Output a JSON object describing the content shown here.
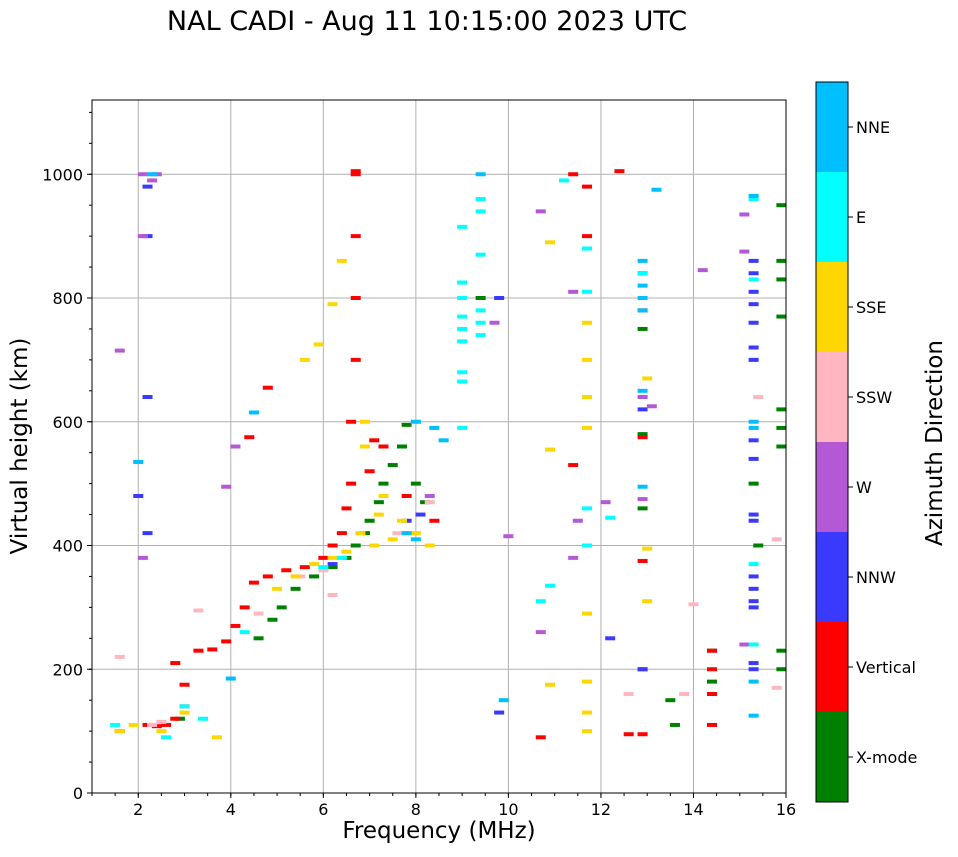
{
  "chart_data": {
    "type": "scatter",
    "title": "NAL CADI - Aug 11 10:15:00 2023 UTC",
    "xlabel": "Frequency (MHz)",
    "ylabel": "Virtual height (km)",
    "xlim": [
      1,
      16
    ],
    "ylim": [
      0,
      1120
    ],
    "xticks": [
      2,
      4,
      6,
      8,
      10,
      12,
      14,
      16
    ],
    "yticks": [
      0,
      200,
      400,
      600,
      800,
      1000
    ],
    "grid": true,
    "colorbar": {
      "label": "Azimuth Direction",
      "categories": [
        {
          "name": "X-mode",
          "color": "#008000"
        },
        {
          "name": "Vertical",
          "color": "#ff0000"
        },
        {
          "name": "NNW",
          "color": "#3a3aff"
        },
        {
          "name": "W",
          "color": "#b359d6"
        },
        {
          "name": "SSW",
          "color": "#ffb6c1"
        },
        {
          "name": "SSE",
          "color": "#ffd700"
        },
        {
          "name": "E",
          "color": "#00ffff"
        },
        {
          "name": "NNE",
          "color": "#00bfff"
        }
      ]
    },
    "series": [
      {
        "name": "X-mode",
        "points": [
          [
            2.9,
            120
          ],
          [
            4.6,
            250
          ],
          [
            4.9,
            280
          ],
          [
            5.1,
            300
          ],
          [
            5.4,
            330
          ],
          [
            5.8,
            350
          ],
          [
            6.2,
            365
          ],
          [
            6.5,
            380
          ],
          [
            6.7,
            400
          ],
          [
            6.9,
            420
          ],
          [
            7.0,
            440
          ],
          [
            7.2,
            470
          ],
          [
            7.3,
            500
          ],
          [
            7.5,
            530
          ],
          [
            7.7,
            560
          ],
          [
            7.8,
            595
          ],
          [
            8.0,
            500
          ],
          [
            8.2,
            470
          ],
          [
            12.9,
            750
          ],
          [
            12.9,
            460
          ],
          [
            12.9,
            580
          ],
          [
            14.4,
            230
          ],
          [
            14.4,
            180
          ],
          [
            15.3,
            500
          ],
          [
            15.4,
            400
          ],
          [
            15.9,
            950
          ],
          [
            15.9,
            860
          ],
          [
            15.9,
            830
          ],
          [
            15.9,
            770
          ],
          [
            15.9,
            620
          ],
          [
            15.9,
            590
          ],
          [
            15.9,
            560
          ],
          [
            15.9,
            230
          ],
          [
            15.9,
            200
          ],
          [
            13.5,
            150
          ],
          [
            13.6,
            110
          ],
          [
            9.4,
            800
          ]
        ]
      },
      {
        "name": "Vertical",
        "points": [
          [
            1.6,
            100
          ],
          [
            2.2,
            110
          ],
          [
            2.4,
            108
          ],
          [
            2.6,
            110
          ],
          [
            2.8,
            120
          ],
          [
            3.0,
            140
          ],
          [
            3.0,
            175
          ],
          [
            2.8,
            210
          ],
          [
            3.3,
            230
          ],
          [
            3.6,
            232
          ],
          [
            3.9,
            245
          ],
          [
            4.1,
            270
          ],
          [
            4.3,
            300
          ],
          [
            4.5,
            340
          ],
          [
            4.8,
            350
          ],
          [
            5.2,
            360
          ],
          [
            5.6,
            365
          ],
          [
            6.0,
            380
          ],
          [
            6.2,
            400
          ],
          [
            6.4,
            420
          ],
          [
            6.5,
            460
          ],
          [
            6.6,
            500
          ],
          [
            6.6,
            600
          ],
          [
            6.7,
            700
          ],
          [
            6.7,
            800
          ],
          [
            6.7,
            900
          ],
          [
            6.7,
            1000
          ],
          [
            6.7,
            1005
          ],
          [
            7.0,
            520
          ],
          [
            7.1,
            570
          ],
          [
            7.3,
            560
          ],
          [
            7.8,
            480
          ],
          [
            8.4,
            440
          ],
          [
            4.8,
            655
          ],
          [
            4.4,
            575
          ],
          [
            11.4,
            530
          ],
          [
            11.4,
            1000
          ],
          [
            11.7,
            980
          ],
          [
            11.7,
            900
          ],
          [
            12.4,
            1005
          ],
          [
            12.9,
            780
          ],
          [
            12.9,
            575
          ],
          [
            12.9,
            375
          ],
          [
            12.9,
            200
          ],
          [
            12.9,
            95
          ],
          [
            14.4,
            230
          ],
          [
            14.4,
            200
          ],
          [
            14.4,
            160
          ],
          [
            14.4,
            110
          ],
          [
            12.6,
            95
          ],
          [
            10.7,
            90
          ]
        ]
      },
      {
        "name": "NNW",
        "points": [
          [
            2.2,
            420
          ],
          [
            2.2,
            640
          ],
          [
            2.2,
            900
          ],
          [
            2.2,
            980
          ],
          [
            2.0,
            480
          ],
          [
            6.2,
            370
          ],
          [
            7.8,
            440
          ],
          [
            8.1,
            450
          ],
          [
            9.8,
            800
          ],
          [
            9.8,
            130
          ],
          [
            12.2,
            250
          ],
          [
            12.9,
            840
          ],
          [
            12.9,
            620
          ],
          [
            12.9,
            200
          ],
          [
            15.3,
            860
          ],
          [
            15.3,
            840
          ],
          [
            15.3,
            810
          ],
          [
            15.3,
            790
          ],
          [
            15.3,
            760
          ],
          [
            15.3,
            720
          ],
          [
            15.3,
            700
          ],
          [
            15.3,
            570
          ],
          [
            15.3,
            540
          ],
          [
            15.3,
            450
          ],
          [
            15.3,
            440
          ],
          [
            15.3,
            350
          ],
          [
            15.3,
            330
          ],
          [
            15.3,
            310
          ],
          [
            15.3,
            300
          ],
          [
            15.3,
            210
          ],
          [
            15.3,
            200
          ]
        ]
      },
      {
        "name": "W",
        "points": [
          [
            2.1,
            380
          ],
          [
            2.1,
            900
          ],
          [
            2.1,
            1000
          ],
          [
            2.4,
            1000
          ],
          [
            2.3,
            990
          ],
          [
            1.6,
            715
          ],
          [
            3.9,
            495
          ],
          [
            4.1,
            560
          ],
          [
            8.3,
            480
          ],
          [
            9.7,
            760
          ],
          [
            10.0,
            415
          ],
          [
            10.7,
            940
          ],
          [
            10.7,
            260
          ],
          [
            11.4,
            810
          ],
          [
            11.4,
            380
          ],
          [
            11.5,
            440
          ],
          [
            12.1,
            470
          ],
          [
            12.9,
            640
          ],
          [
            12.9,
            475
          ],
          [
            13.1,
            625
          ],
          [
            14.2,
            845
          ],
          [
            15.1,
            935
          ],
          [
            15.1,
            875
          ],
          [
            15.1,
            240
          ]
        ]
      },
      {
        "name": "SSW",
        "points": [
          [
            1.6,
            220
          ],
          [
            2.3,
            110
          ],
          [
            2.5,
            115
          ],
          [
            3.3,
            295
          ],
          [
            4.6,
            290
          ],
          [
            5.5,
            350
          ],
          [
            6.2,
            320
          ],
          [
            6.0,
            360
          ],
          [
            7.6,
            420
          ],
          [
            8.3,
            470
          ],
          [
            12.6,
            160
          ],
          [
            13.8,
            160
          ],
          [
            14.0,
            305
          ],
          [
            15.8,
            410
          ],
          [
            15.8,
            170
          ],
          [
            15.4,
            640
          ]
        ]
      },
      {
        "name": "SSE",
        "points": [
          [
            1.6,
            100
          ],
          [
            1.9,
            110
          ],
          [
            2.5,
            100
          ],
          [
            3.0,
            130
          ],
          [
            3.7,
            90
          ],
          [
            5.0,
            330
          ],
          [
            5.4,
            350
          ],
          [
            5.8,
            370
          ],
          [
            6.2,
            380
          ],
          [
            6.5,
            390
          ],
          [
            6.8,
            420
          ],
          [
            7.1,
            400
          ],
          [
            7.2,
            450
          ],
          [
            7.3,
            480
          ],
          [
            7.5,
            410
          ],
          [
            7.7,
            440
          ],
          [
            8.0,
            420
          ],
          [
            8.3,
            400
          ],
          [
            5.6,
            700
          ],
          [
            5.9,
            725
          ],
          [
            6.2,
            790
          ],
          [
            6.4,
            860
          ],
          [
            6.9,
            560
          ],
          [
            6.9,
            600
          ],
          [
            10.9,
            890
          ],
          [
            10.9,
            175
          ],
          [
            10.9,
            555
          ],
          [
            11.7,
            760
          ],
          [
            11.7,
            700
          ],
          [
            11.7,
            640
          ],
          [
            11.7,
            590
          ],
          [
            11.7,
            290
          ],
          [
            11.7,
            180
          ],
          [
            11.7,
            130
          ],
          [
            11.7,
            100
          ],
          [
            13.0,
            670
          ],
          [
            13.0,
            395
          ],
          [
            13.0,
            310
          ]
        ]
      },
      {
        "name": "E",
        "points": [
          [
            1.5,
            110
          ],
          [
            2.6,
            90
          ],
          [
            3.0,
            140
          ],
          [
            3.4,
            120
          ],
          [
            4.3,
            260
          ],
          [
            6.0,
            365
          ],
          [
            6.4,
            380
          ],
          [
            9.0,
            825
          ],
          [
            9.0,
            800
          ],
          [
            9.0,
            770
          ],
          [
            9.0,
            750
          ],
          [
            9.0,
            730
          ],
          [
            9.0,
            680
          ],
          [
            9.0,
            665
          ],
          [
            9.0,
            590
          ],
          [
            9.0,
            915
          ],
          [
            9.4,
            960
          ],
          [
            9.4,
            940
          ],
          [
            9.4,
            870
          ],
          [
            9.4,
            780
          ],
          [
            9.4,
            760
          ],
          [
            9.4,
            740
          ],
          [
            10.7,
            310
          ],
          [
            10.9,
            335
          ],
          [
            11.2,
            990
          ],
          [
            11.7,
            880
          ],
          [
            11.7,
            810
          ],
          [
            11.7,
            460
          ],
          [
            11.7,
            400
          ],
          [
            12.2,
            445
          ],
          [
            12.9,
            840
          ],
          [
            15.3,
            960
          ],
          [
            15.3,
            830
          ],
          [
            15.3,
            370
          ],
          [
            15.3,
            240
          ]
        ]
      },
      {
        "name": "NNE",
        "points": [
          [
            2.0,
            535
          ],
          [
            2.3,
            1000
          ],
          [
            4.0,
            185
          ],
          [
            4.5,
            615
          ],
          [
            7.8,
            420
          ],
          [
            8.0,
            410
          ],
          [
            8.0,
            600
          ],
          [
            8.4,
            590
          ],
          [
            8.6,
            570
          ],
          [
            9.4,
            1000
          ],
          [
            9.9,
            150
          ],
          [
            12.9,
            860
          ],
          [
            12.9,
            820
          ],
          [
            12.9,
            800
          ],
          [
            12.9,
            780
          ],
          [
            12.9,
            650
          ],
          [
            12.9,
            495
          ],
          [
            13.2,
            975
          ],
          [
            15.3,
            965
          ],
          [
            15.3,
            600
          ],
          [
            15.3,
            590
          ],
          [
            15.3,
            180
          ],
          [
            15.3,
            125
          ]
        ]
      }
    ]
  }
}
